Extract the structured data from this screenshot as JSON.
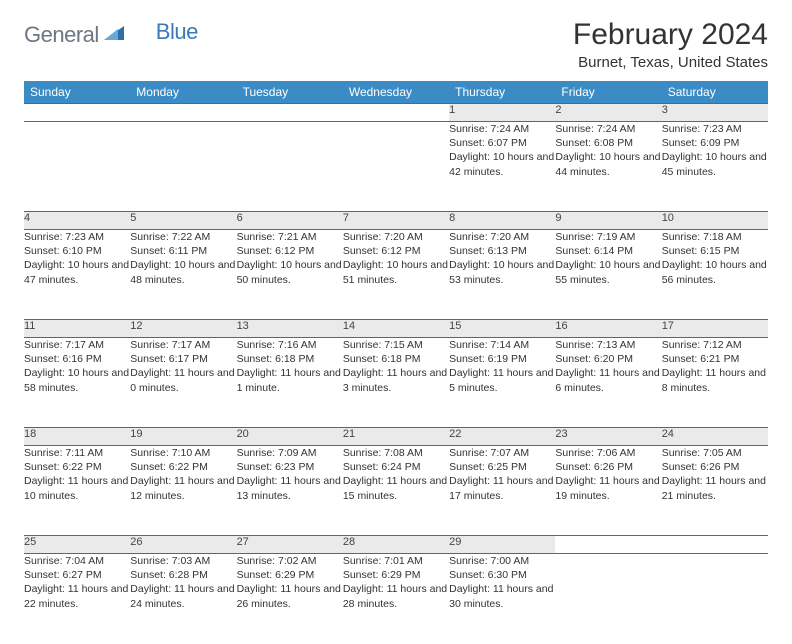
{
  "brand": {
    "part1": "General",
    "part2": "Blue"
  },
  "title": "February 2024",
  "location": "Burnet, Texas, United States",
  "colors": {
    "header_bg": "#3b8bc4",
    "header_text": "#ffffff",
    "daynum_bg": "#eaeaea",
    "row_border": "#3b6f97",
    "text": "#333333",
    "logo_gray": "#6b7785",
    "logo_blue": "#3a7ab8"
  },
  "daysOfWeek": [
    "Sunday",
    "Monday",
    "Tuesday",
    "Wednesday",
    "Thursday",
    "Friday",
    "Saturday"
  ],
  "weeks": [
    [
      null,
      null,
      null,
      null,
      {
        "n": "1",
        "sr": "7:24 AM",
        "ss": "6:07 PM",
        "d": "10 hours and 42 minutes."
      },
      {
        "n": "2",
        "sr": "7:24 AM",
        "ss": "6:08 PM",
        "d": "10 hours and 44 minutes."
      },
      {
        "n": "3",
        "sr": "7:23 AM",
        "ss": "6:09 PM",
        "d": "10 hours and 45 minutes."
      }
    ],
    [
      {
        "n": "4",
        "sr": "7:23 AM",
        "ss": "6:10 PM",
        "d": "10 hours and 47 minutes."
      },
      {
        "n": "5",
        "sr": "7:22 AM",
        "ss": "6:11 PM",
        "d": "10 hours and 48 minutes."
      },
      {
        "n": "6",
        "sr": "7:21 AM",
        "ss": "6:12 PM",
        "d": "10 hours and 50 minutes."
      },
      {
        "n": "7",
        "sr": "7:20 AM",
        "ss": "6:12 PM",
        "d": "10 hours and 51 minutes."
      },
      {
        "n": "8",
        "sr": "7:20 AM",
        "ss": "6:13 PM",
        "d": "10 hours and 53 minutes."
      },
      {
        "n": "9",
        "sr": "7:19 AM",
        "ss": "6:14 PM",
        "d": "10 hours and 55 minutes."
      },
      {
        "n": "10",
        "sr": "7:18 AM",
        "ss": "6:15 PM",
        "d": "10 hours and 56 minutes."
      }
    ],
    [
      {
        "n": "11",
        "sr": "7:17 AM",
        "ss": "6:16 PM",
        "d": "10 hours and 58 minutes."
      },
      {
        "n": "12",
        "sr": "7:17 AM",
        "ss": "6:17 PM",
        "d": "11 hours and 0 minutes."
      },
      {
        "n": "13",
        "sr": "7:16 AM",
        "ss": "6:18 PM",
        "d": "11 hours and 1 minute."
      },
      {
        "n": "14",
        "sr": "7:15 AM",
        "ss": "6:18 PM",
        "d": "11 hours and 3 minutes."
      },
      {
        "n": "15",
        "sr": "7:14 AM",
        "ss": "6:19 PM",
        "d": "11 hours and 5 minutes."
      },
      {
        "n": "16",
        "sr": "7:13 AM",
        "ss": "6:20 PM",
        "d": "11 hours and 6 minutes."
      },
      {
        "n": "17",
        "sr": "7:12 AM",
        "ss": "6:21 PM",
        "d": "11 hours and 8 minutes."
      }
    ],
    [
      {
        "n": "18",
        "sr": "7:11 AM",
        "ss": "6:22 PM",
        "d": "11 hours and 10 minutes."
      },
      {
        "n": "19",
        "sr": "7:10 AM",
        "ss": "6:22 PM",
        "d": "11 hours and 12 minutes."
      },
      {
        "n": "20",
        "sr": "7:09 AM",
        "ss": "6:23 PM",
        "d": "11 hours and 13 minutes."
      },
      {
        "n": "21",
        "sr": "7:08 AM",
        "ss": "6:24 PM",
        "d": "11 hours and 15 minutes."
      },
      {
        "n": "22",
        "sr": "7:07 AM",
        "ss": "6:25 PM",
        "d": "11 hours and 17 minutes."
      },
      {
        "n": "23",
        "sr": "7:06 AM",
        "ss": "6:26 PM",
        "d": "11 hours and 19 minutes."
      },
      {
        "n": "24",
        "sr": "7:05 AM",
        "ss": "6:26 PM",
        "d": "11 hours and 21 minutes."
      }
    ],
    [
      {
        "n": "25",
        "sr": "7:04 AM",
        "ss": "6:27 PM",
        "d": "11 hours and 22 minutes."
      },
      {
        "n": "26",
        "sr": "7:03 AM",
        "ss": "6:28 PM",
        "d": "11 hours and 24 minutes."
      },
      {
        "n": "27",
        "sr": "7:02 AM",
        "ss": "6:29 PM",
        "d": "11 hours and 26 minutes."
      },
      {
        "n": "28",
        "sr": "7:01 AM",
        "ss": "6:29 PM",
        "d": "11 hours and 28 minutes."
      },
      {
        "n": "29",
        "sr": "7:00 AM",
        "ss": "6:30 PM",
        "d": "11 hours and 30 minutes."
      },
      null,
      null
    ]
  ],
  "labels": {
    "sunrise": "Sunrise:",
    "sunset": "Sunset:",
    "daylight": "Daylight:"
  }
}
